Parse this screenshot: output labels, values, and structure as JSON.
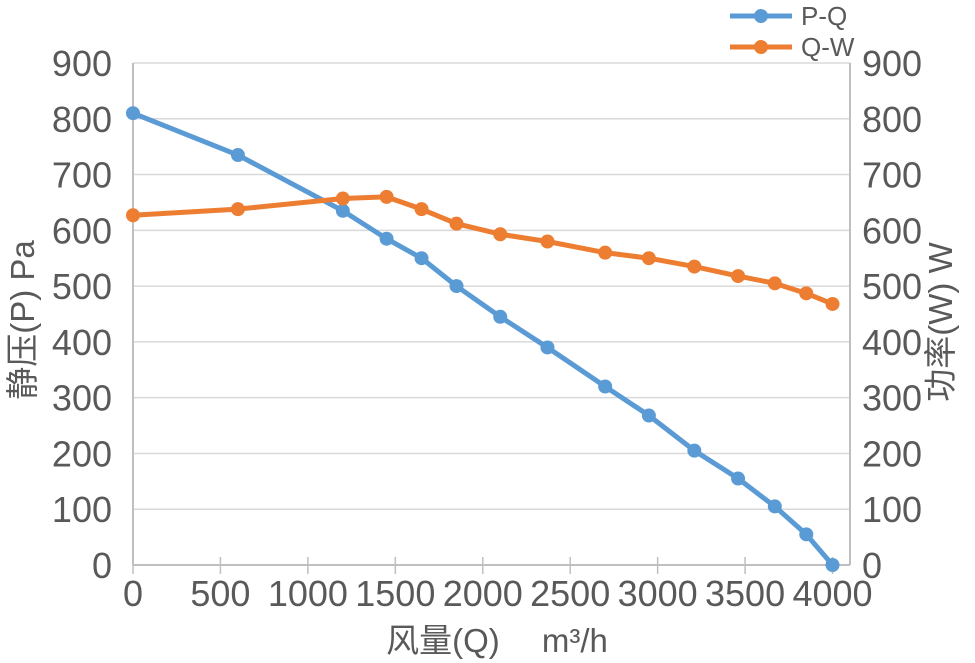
{
  "chart_data": {
    "type": "line",
    "title": "",
    "x": [
      0,
      600,
      1200,
      1450,
      1650,
      1850,
      2100,
      2370,
      2700,
      2950,
      3210,
      3460,
      3670,
      3850,
      4000
    ],
    "series": [
      {
        "name": "P-Q",
        "axis": "left",
        "color": "#5B9BD5",
        "marker": "circle",
        "values": [
          810,
          735,
          635,
          585,
          550,
          500,
          445,
          390,
          320,
          268,
          205,
          155,
          105,
          55,
          0
        ]
      },
      {
        "name": "Q-W",
        "axis": "right",
        "color": "#ED7D31",
        "marker": "circle",
        "values": [
          627,
          638,
          657,
          660,
          638,
          612,
          593,
          580,
          560,
          550,
          535,
          518,
          505,
          487,
          468
        ]
      }
    ],
    "xlabel": "风量(Q)　 m³/h",
    "ylabel_left": "静压(P)  Pa",
    "ylabel_right": "功率(W)  W",
    "x_ticks": [
      "0",
      "500",
      "1000",
      "1500",
      "2000",
      "2500",
      "3000",
      "3500",
      "4000"
    ],
    "y_ticks_left": [
      "0",
      "100",
      "200",
      "300",
      "400",
      "500",
      "600",
      "700",
      "800",
      "900"
    ],
    "y_ticks_right": [
      "0",
      "100",
      "200",
      "300",
      "400",
      "500",
      "600",
      "700",
      "800",
      "900"
    ],
    "xlim": [
      0,
      4100
    ],
    "ylim": [
      0,
      900
    ],
    "grid": "horizontal-only",
    "legend_position": "top-right",
    "colors": {
      "text": "#595959",
      "gridline": "#D9D9D9",
      "axis_line": "#BFBFBF",
      "background": "#FFFFFF"
    }
  }
}
